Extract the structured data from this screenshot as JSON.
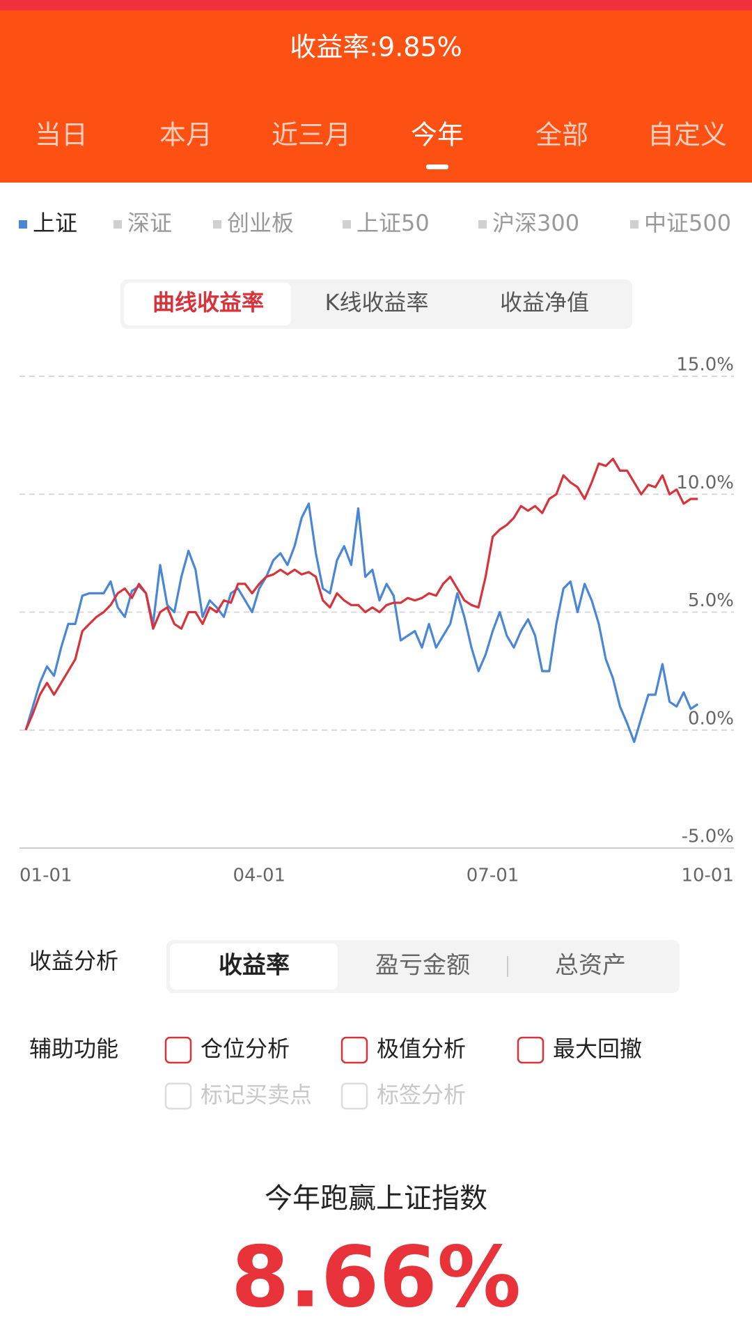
{
  "header": {
    "title": "收益率:9.85%"
  },
  "period_tabs": [
    "当日",
    "本月",
    "近三月",
    "今年",
    "全部",
    "自定义"
  ],
  "index_tabs": [
    "深证",
    "创业板",
    "上证50",
    "沪深300",
    "中证500"
  ],
  "chart_modes": [
    "曲线收益率",
    "K线收益率",
    "收益净值"
  ],
  "chart_data": {
    "type": "line",
    "categories": [
      "01-01",
      null,
      null,
      null,
      null,
      null,
      null,
      null,
      null,
      null,
      null,
      null,
      null,
      null,
      null,
      null,
      null,
      null,
      null,
      null,
      null,
      null,
      null,
      null,
      null,
      null,
      null,
      null,
      null,
      null,
      null,
      null,
      null,
      "04-01",
      null,
      null,
      null,
      null,
      null,
      null,
      null,
      null,
      null,
      null,
      null,
      null,
      null,
      null,
      null,
      null,
      null,
      null,
      null,
      null,
      null,
      null,
      null,
      null,
      null,
      null,
      null,
      null,
      null,
      null,
      null,
      null,
      "07-01",
      null,
      null,
      null,
      null,
      null,
      null,
      null,
      null,
      null,
      null,
      null,
      null,
      null,
      null,
      null,
      null,
      null,
      null,
      null,
      null,
      null,
      null,
      null,
      null,
      null,
      null,
      null,
      null,
      null,
      "10-01"
    ],
    "series": [
      {
        "name": "上证",
        "color": "#4a86d8",
        "values": [
          0,
          1.0,
          2.0,
          2.7,
          2.3,
          3.5,
          4.5,
          4.5,
          5.7,
          5.8,
          5.8,
          5.8,
          6.3,
          5.2,
          4.8,
          5.9,
          6.1,
          5.8,
          4.5,
          7.0,
          5.3,
          5.0,
          6.5,
          7.6,
          6.8,
          4.8,
          5.5,
          5.2,
          4.8,
          5.8,
          6.0,
          5.5,
          5.0,
          6.0,
          6.5,
          7.2,
          7.5,
          7.0,
          7.8,
          9.0,
          9.6,
          7.5,
          6.0,
          5.8,
          7.2,
          7.8,
          7.0,
          9.4,
          6.5,
          6.8,
          5.5,
          6.2,
          5.7,
          3.8,
          4.0,
          4.2,
          3.5,
          4.5,
          3.5,
          4.0,
          4.5,
          5.8,
          4.8,
          3.5,
          2.5,
          3.2,
          4.2,
          5.0,
          4.0,
          3.5,
          4.2,
          4.7,
          4.0,
          2.5,
          2.5,
          4.5,
          6.0,
          6.3,
          5.0,
          6.2,
          5.5,
          4.5,
          3.0,
          2.2,
          1.0,
          0.3,
          -0.5,
          0.5,
          1.5,
          1.5,
          2.8,
          1.2,
          1.0,
          1.6,
          0.9,
          1.1,
          null
        ]
      },
      {
        "color": "#d8323a",
        "values": [
          0,
          0.7,
          1.5,
          2.0,
          1.5,
          2.0,
          2.5,
          3.0,
          4.2,
          4.5,
          4.8,
          5.0,
          5.3,
          5.8,
          6.0,
          5.6,
          6.2,
          5.8,
          4.3,
          5.0,
          5.2,
          4.5,
          4.3,
          5.0,
          5.0,
          4.5,
          5.2,
          5.0,
          5.5,
          5.4,
          6.2,
          6.2,
          5.8,
          6.2,
          6.5,
          6.6,
          6.8,
          6.6,
          6.8,
          6.6,
          6.7,
          6.5,
          5.5,
          5.2,
          5.8,
          5.5,
          5.3,
          5.3,
          5.0,
          5.2,
          5.0,
          5.3,
          5.4,
          5.4,
          5.6,
          5.5,
          5.6,
          5.8,
          5.7,
          6.2,
          6.5,
          6.0,
          5.5,
          5.3,
          5.2,
          6.5,
          8.2,
          8.5,
          8.7,
          9.0,
          9.5,
          9.3,
          9.5,
          9.2,
          9.8,
          10.0,
          10.8,
          10.5,
          10.3,
          9.8,
          10.5,
          11.3,
          11.2,
          11.5,
          11.0,
          11.0,
          10.5,
          10.0,
          10.4,
          10.3,
          10.8,
          10.0,
          10.2,
          9.6,
          9.8,
          9.8,
          null
        ]
      }
    ],
    "ylim": [
      -5,
      15
    ],
    "yticks": [
      {
        "value": -5,
        "label": "-5.0%"
      },
      {
        "value": 0,
        "label": "0.0%"
      },
      {
        "value": 5,
        "label": "5.0%"
      },
      {
        "value": 10,
        "label": "10.0%"
      },
      {
        "value": 15,
        "label": "15.0%"
      }
    ],
    "grid": true
  },
  "analysis": {
    "label": "收益分析",
    "options": [
      "收益率",
      "盈亏金额",
      "总资产"
    ]
  },
  "aux": {
    "label": "辅助功能",
    "options": [
      "仓位分析",
      "极值分析",
      "最大回撤"
    ],
    "disabled_options": [
      "标记买卖点",
      "标签分析"
    ]
  },
  "summary": {
    "title": "今年跑赢上证指数",
    "value": "8.66%"
  }
}
